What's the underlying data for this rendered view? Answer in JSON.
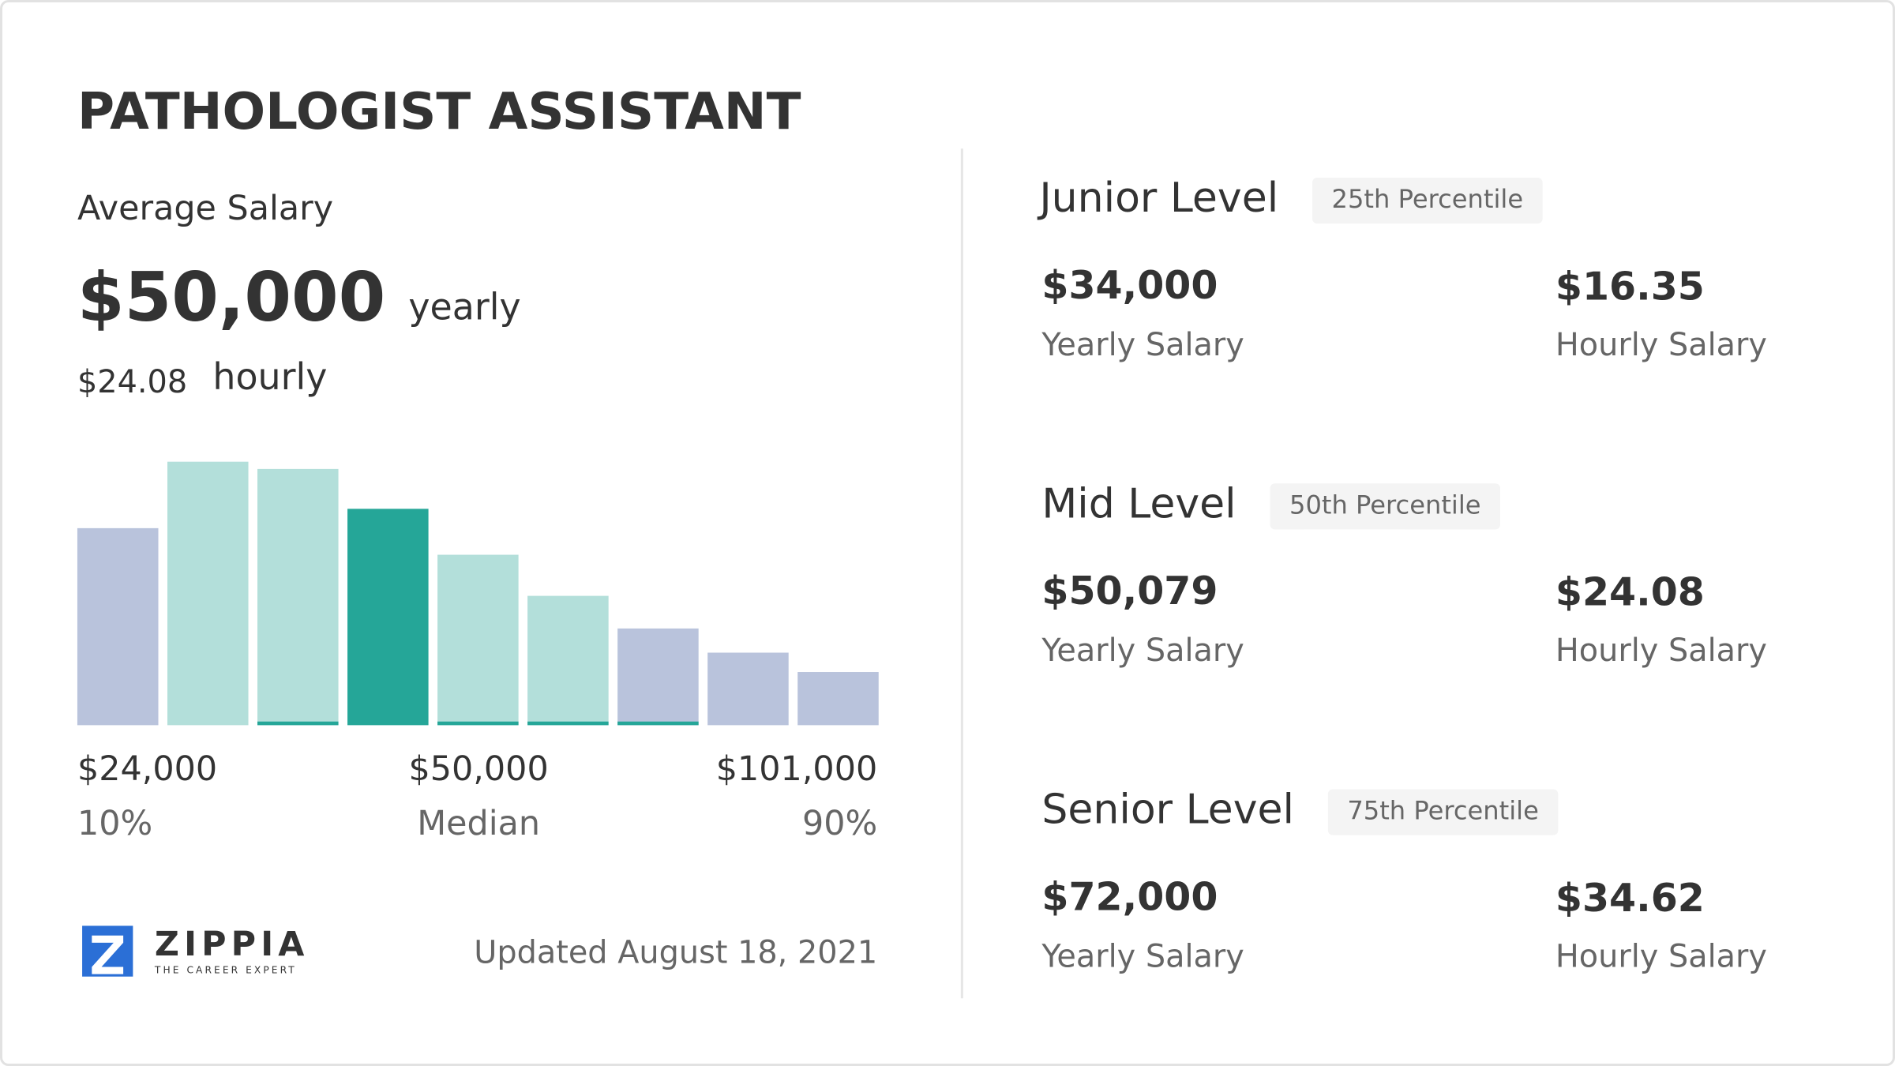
{
  "title": "PATHOLOGIST ASSISTANT",
  "average": {
    "label": "Average Salary",
    "yearly": "$50,000",
    "yearly_unit": "yearly",
    "hourly": "$24.08",
    "hourly_unit": "hourly"
  },
  "histogram": {
    "type": "bar",
    "values": [
      163,
      218,
      212,
      179,
      141,
      107,
      80,
      60,
      44
    ],
    "colors": [
      "#b9c3dc",
      "#b3dfda",
      "#b3dfda",
      "#25a698",
      "#b3dfda",
      "#b3dfda",
      "#b9c3dc",
      "#b9c3dc",
      "#b9c3dc"
    ],
    "underline": [
      false,
      false,
      true,
      false,
      true,
      true,
      true,
      false,
      false
    ],
    "underline_color": "#25a698"
  },
  "markers": [
    {
      "value": "$24,000",
      "label": "10%"
    },
    {
      "value": "$50,000",
      "label": "Median"
    },
    {
      "value": "$101,000",
      "label": "90%"
    }
  ],
  "logo": {
    "name": "ZIPPIA",
    "tagline": "THE CAREER EXPERT"
  },
  "updated": "Updated August 18, 2021",
  "levels": [
    {
      "name": "Junior Level",
      "percentile": "25th Percentile",
      "yearly": "$34,000",
      "yearly_label": "Yearly Salary",
      "hourly": "$16.35",
      "hourly_label": "Hourly Salary"
    },
    {
      "name": "Mid Level",
      "percentile": "50th Percentile",
      "yearly": "$50,079",
      "yearly_label": "Yearly Salary",
      "hourly": "$24.08",
      "hourly_label": "Hourly Salary"
    },
    {
      "name": "Senior Level",
      "percentile": "75th Percentile",
      "yearly": "$72,000",
      "yearly_label": "Yearly Salary",
      "hourly": "$34.62",
      "hourly_label": "Hourly Salary"
    }
  ]
}
